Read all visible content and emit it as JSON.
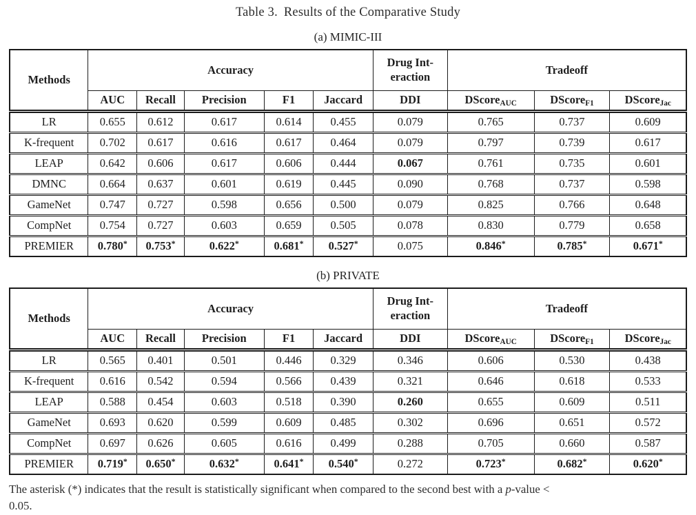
{
  "page": {
    "title_label": "Table 3.",
    "title_text": "Results of the Comparative Study",
    "footnote": {
      "pre": "The asterisk (*) indicates that the result is statistically significant when compared to the second best with a ",
      "italic": "p",
      "post": "-value <",
      "line2": "0.05."
    }
  },
  "columns": {
    "method_header": "Methods",
    "groups": [
      {
        "label": "Accuracy",
        "span": 5
      },
      {
        "lines": [
          "Drug Int-",
          "eraction"
        ],
        "span": 1
      },
      {
        "label": "Tradeoff",
        "span": 3
      }
    ],
    "sub": [
      {
        "base": "AUC"
      },
      {
        "base": "Recall"
      },
      {
        "base": "Precision"
      },
      {
        "base": "F1"
      },
      {
        "base": "Jaccard"
      },
      {
        "base": "DDI"
      },
      {
        "base": "DScore",
        "sub": "AUC"
      },
      {
        "base": "DScore",
        "sub": "F1"
      },
      {
        "base": "DScore",
        "sub": "Jac"
      }
    ]
  },
  "tables": [
    {
      "caption": "(a) MIMIC-III",
      "rows": [
        {
          "method": "LR",
          "cells": [
            {
              "v": "0.655"
            },
            {
              "v": "0.612"
            },
            {
              "v": "0.617"
            },
            {
              "v": "0.614"
            },
            {
              "v": "0.455"
            },
            {
              "v": "0.079"
            },
            {
              "v": "0.765"
            },
            {
              "v": "0.737"
            },
            {
              "v": "0.609"
            }
          ]
        },
        {
          "method": "K-frequent",
          "cells": [
            {
              "v": "0.702"
            },
            {
              "v": "0.617"
            },
            {
              "v": "0.616"
            },
            {
              "v": "0.617"
            },
            {
              "v": "0.464"
            },
            {
              "v": "0.079"
            },
            {
              "v": "0.797"
            },
            {
              "v": "0.739"
            },
            {
              "v": "0.617"
            }
          ]
        },
        {
          "method": "LEAP",
          "cells": [
            {
              "v": "0.642"
            },
            {
              "v": "0.606"
            },
            {
              "v": "0.617"
            },
            {
              "v": "0.606"
            },
            {
              "v": "0.444"
            },
            {
              "v": "0.067",
              "bold": true
            },
            {
              "v": "0.761"
            },
            {
              "v": "0.735"
            },
            {
              "v": "0.601"
            }
          ]
        },
        {
          "method": "DMNC",
          "cells": [
            {
              "v": "0.664"
            },
            {
              "v": "0.637"
            },
            {
              "v": "0.601"
            },
            {
              "v": "0.619"
            },
            {
              "v": "0.445"
            },
            {
              "v": "0.090"
            },
            {
              "v": "0.768"
            },
            {
              "v": "0.737"
            },
            {
              "v": "0.598"
            }
          ]
        },
        {
          "method": "GameNet",
          "cells": [
            {
              "v": "0.747"
            },
            {
              "v": "0.727"
            },
            {
              "v": "0.598"
            },
            {
              "v": "0.656"
            },
            {
              "v": "0.500"
            },
            {
              "v": "0.079"
            },
            {
              "v": "0.825"
            },
            {
              "v": "0.766"
            },
            {
              "v": "0.648"
            }
          ]
        },
        {
          "method": "CompNet",
          "cells": [
            {
              "v": "0.754"
            },
            {
              "v": "0.727"
            },
            {
              "v": "0.603"
            },
            {
              "v": "0.659"
            },
            {
              "v": "0.505"
            },
            {
              "v": "0.078"
            },
            {
              "v": "0.830"
            },
            {
              "v": "0.779"
            },
            {
              "v": "0.658"
            }
          ]
        },
        {
          "method": "PREMIER",
          "cells": [
            {
              "v": "0.780",
              "bold": true,
              "star": true
            },
            {
              "v": "0.753",
              "bold": true,
              "star": true
            },
            {
              "v": "0.622",
              "bold": true,
              "star": true
            },
            {
              "v": "0.681",
              "bold": true,
              "star": true
            },
            {
              "v": "0.527",
              "bold": true,
              "star": true
            },
            {
              "v": "0.075"
            },
            {
              "v": "0.846",
              "bold": true,
              "star": true
            },
            {
              "v": "0.785",
              "bold": true,
              "star": true
            },
            {
              "v": "0.671",
              "bold": true,
              "star": true
            }
          ]
        }
      ]
    },
    {
      "caption": "(b) PRIVATE",
      "rows": [
        {
          "method": "LR",
          "cells": [
            {
              "v": "0.565"
            },
            {
              "v": "0.401"
            },
            {
              "v": "0.501"
            },
            {
              "v": "0.446"
            },
            {
              "v": "0.329"
            },
            {
              "v": "0.346"
            },
            {
              "v": "0.606"
            },
            {
              "v": "0.530"
            },
            {
              "v": "0.438"
            }
          ]
        },
        {
          "method": "K-frequent",
          "cells": [
            {
              "v": "0.616"
            },
            {
              "v": "0.542"
            },
            {
              "v": "0.594"
            },
            {
              "v": "0.566"
            },
            {
              "v": "0.439"
            },
            {
              "v": "0.321"
            },
            {
              "v": "0.646"
            },
            {
              "v": "0.618"
            },
            {
              "v": "0.533"
            }
          ]
        },
        {
          "method": "LEAP",
          "cells": [
            {
              "v": "0.588"
            },
            {
              "v": "0.454"
            },
            {
              "v": "0.603"
            },
            {
              "v": "0.518"
            },
            {
              "v": "0.390"
            },
            {
              "v": "0.260",
              "bold": true
            },
            {
              "v": "0.655"
            },
            {
              "v": "0.609"
            },
            {
              "v": "0.511"
            }
          ]
        },
        {
          "method": "GameNet",
          "cells": [
            {
              "v": "0.693"
            },
            {
              "v": "0.620"
            },
            {
              "v": "0.599"
            },
            {
              "v": "0.609"
            },
            {
              "v": "0.485"
            },
            {
              "v": "0.302"
            },
            {
              "v": "0.696"
            },
            {
              "v": "0.651"
            },
            {
              "v": "0.572"
            }
          ]
        },
        {
          "method": "CompNet",
          "cells": [
            {
              "v": "0.697"
            },
            {
              "v": "0.626"
            },
            {
              "v": "0.605"
            },
            {
              "v": "0.616"
            },
            {
              "v": "0.499"
            },
            {
              "v": "0.288"
            },
            {
              "v": "0.705"
            },
            {
              "v": "0.660"
            },
            {
              "v": "0.587"
            }
          ]
        },
        {
          "method": "PREMIER",
          "cells": [
            {
              "v": "0.719",
              "bold": true,
              "star": true
            },
            {
              "v": "0.650",
              "bold": true,
              "star": true
            },
            {
              "v": "0.632",
              "bold": true,
              "star": true
            },
            {
              "v": "0.641",
              "bold": true,
              "star": true
            },
            {
              "v": "0.540",
              "bold": true,
              "star": true
            },
            {
              "v": "0.272"
            },
            {
              "v": "0.723",
              "bold": true,
              "star": true
            },
            {
              "v": "0.682",
              "bold": true,
              "star": true
            },
            {
              "v": "0.620",
              "bold": true,
              "star": true
            }
          ]
        }
      ]
    }
  ]
}
